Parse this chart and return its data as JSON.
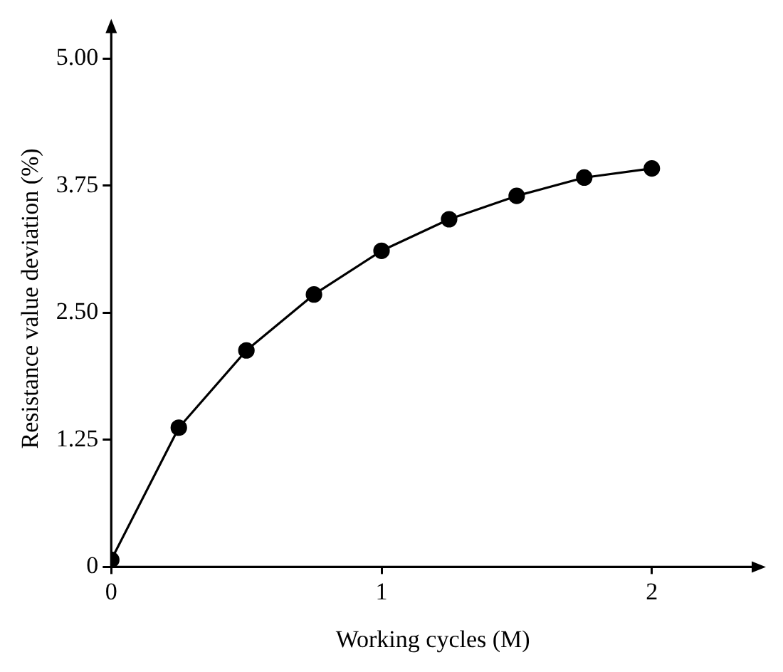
{
  "chart_data": {
    "type": "line",
    "xlabel": "Working cycles (M)",
    "ylabel": "Resistance value deviation (%)",
    "x": [
      0,
      0.25,
      0.5,
      0.75,
      1,
      1.25,
      1.5,
      1.75,
      2
    ],
    "series": [
      {
        "color": "#000000",
        "values": [
          0.07,
          1.37,
          2.13,
          2.68,
          3.11,
          3.42,
          3.65,
          3.83,
          3.92
        ]
      }
    ],
    "xlim": [
      0,
      2.38
    ],
    "xticks": [
      0,
      1,
      2
    ],
    "ylim": [
      0,
      5.28
    ],
    "yticks": [
      0,
      {
        "value": 1.25,
        "label": "1.25"
      },
      {
        "value": 2.5,
        "label": "2.50"
      },
      {
        "value": 3.75,
        "label": "3.75"
      },
      {
        "value": 5,
        "label": "5.00"
      }
    ],
    "grid": false,
    "legend": false,
    "marker": "circle",
    "line_style": "solid"
  }
}
